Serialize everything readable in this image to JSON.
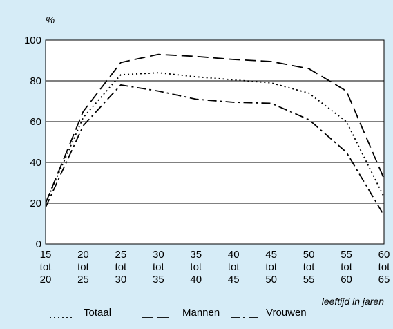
{
  "chart_data": {
    "type": "line",
    "title": "",
    "ylabel": "%",
    "xlabel": "leeftijd in jaren",
    "ylim": [
      0,
      100
    ],
    "yticks": [
      0,
      20,
      40,
      60,
      80,
      100
    ],
    "x": [
      15,
      20,
      25,
      30,
      35,
      40,
      45,
      50,
      55,
      60
    ],
    "x_tick_labels": [
      [
        "15",
        "tot",
        "20"
      ],
      [
        "20",
        "tot",
        "25"
      ],
      [
        "25",
        "tot",
        "30"
      ],
      [
        "30",
        "tot",
        "35"
      ],
      [
        "35",
        "tot",
        "40"
      ],
      [
        "40",
        "tot",
        "45"
      ],
      [
        "45",
        "tot",
        "50"
      ],
      [
        "50",
        "tot",
        "55"
      ],
      [
        "55",
        "tot",
        "60"
      ],
      [
        "60",
        "tot",
        "65"
      ]
    ],
    "grid": "horizontal",
    "legend_position": "bottom",
    "series": [
      {
        "name": "Totaal",
        "style": "dotted",
        "values": [
          20,
          62,
          83,
          84,
          82,
          80.5,
          79,
          74,
          60,
          23
        ]
      },
      {
        "name": "Mannen",
        "style": "dashed",
        "values": [
          20,
          65,
          89,
          93,
          92,
          90.5,
          89.5,
          86,
          75,
          32
        ]
      },
      {
        "name": "Vrouwen",
        "style": "dash-dot",
        "values": [
          18,
          58,
          78,
          75,
          71,
          69.5,
          69,
          61,
          45,
          14
        ]
      }
    ],
    "colors": {
      "background": "#d6ecf7",
      "plot_area": "#ffffff",
      "line": "#000000"
    }
  }
}
